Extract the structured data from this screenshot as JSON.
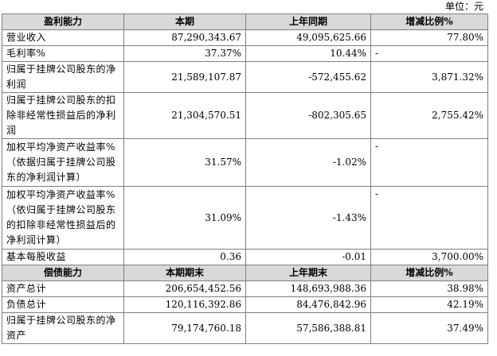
{
  "unit_label": "单位：元",
  "profit_section": {
    "headers": [
      "盈利能力",
      "本期",
      "上年同期",
      "增减比例%"
    ],
    "rows": [
      {
        "label": "营业收入",
        "current": "87,290,343.67",
        "previous": "49,095,625.66",
        "change": "77.80%"
      },
      {
        "label": "毛利率%",
        "current": "37.37%",
        "previous": "10.44%",
        "change": "-"
      },
      {
        "label": "归属于挂牌公司股东的净利润",
        "current": "21,589,107.87",
        "previous": "-572,455.62",
        "change": "3,871.32%"
      },
      {
        "label": "归属于挂牌公司股东的扣除非经常性损益后的净利润",
        "current": "21,304,570.51",
        "previous": "-802,305.65",
        "change": "2,755.42%"
      },
      {
        "label": "加权平均净资产收益率%（依据归属于挂牌公司股东的净利润计算）",
        "current": "31.57%",
        "previous": "-1.02%",
        "change": "-"
      },
      {
        "label": "加权平均净资产收益率%（依归属于挂牌公司股东的扣除非经常性损益后的净利润计算）",
        "current": "31.09%",
        "previous": "-1.43%",
        "change": "-"
      },
      {
        "label": "基本每股收益",
        "current": "0.36",
        "previous": "-0.01",
        "change": "3,700.00%"
      }
    ]
  },
  "solvency_section": {
    "headers": [
      "偿债能力",
      "本期期末",
      "上年期末",
      "增减比例%"
    ],
    "rows": [
      {
        "label": "资产总计",
        "current": "206,654,452.56",
        "previous": "148,693,988.36",
        "change": "38.98%"
      },
      {
        "label": "负债总计",
        "current": "120,116,392.86",
        "previous": "84,476,842.96",
        "change": "42.19%"
      },
      {
        "label": "归属于挂牌公司股东的净资产",
        "current": "79,174,760.18",
        "previous": "57,586,388.81",
        "change": "37.49%"
      }
    ]
  }
}
